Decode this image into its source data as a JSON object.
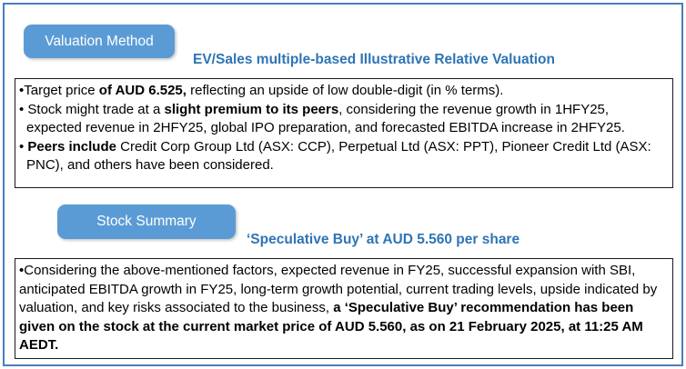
{
  "colors": {
    "badge_blue": "#5B9BD5",
    "heading_blue": "#2E74B5",
    "outer_border_blue": "#4A7EBB",
    "box_border_black": "#1A1A1A",
    "body_text": "#000000"
  },
  "valuation_section": {
    "badge_label": "Valuation Method",
    "heading": "EV/Sales multiple-based Illustrative Relative Valuation",
    "bullets": [
      [
        {
          "text": "•Target price ",
          "bold": false
        },
        {
          "text": "of AUD 6.525,",
          "bold": true
        },
        {
          "text": " reflecting an upside of low double-digit (in % terms).",
          "bold": false
        }
      ],
      [
        {
          "text": "• Stock might trade at a ",
          "bold": false
        },
        {
          "text": "slight premium to its peers",
          "bold": true
        },
        {
          "text": ", considering the revenue growth in 1HFY25, expected revenue in 2HFY25, global IPO preparation, and forecasted EBITDA increase in 2HFY25.",
          "bold": false
        }
      ],
      [
        {
          "text": "• ",
          "bold": false
        },
        {
          "text": "Peers include",
          "bold": true
        },
        {
          "text": " Credit Corp Group Ltd (ASX: CCP), Perpetual Ltd (ASX: PPT), Pioneer Credit Ltd (ASX: PNC), and others have been considered.",
          "bold": false
        }
      ]
    ]
  },
  "summary_section": {
    "badge_label": "Stock Summary",
    "heading": "‘Speculative Buy’ at AUD 5.560 per share",
    "bullets": [
      [
        {
          "text": "•Considering the above-mentioned factors, expected revenue in FY25, successful expansion with SBI, anticipated EBITDA growth in FY25, long-term growth potential, current trading levels, upside indicated by valuation, and key risks associated to the business, ",
          "bold": false
        },
        {
          "text": "a ‘Speculative Buy’ recommendation has been given on the stock at the current market price of AUD 5.560, as on 21 February 2025, at 11:25 AM AEDT.",
          "bold": true
        }
      ]
    ]
  }
}
